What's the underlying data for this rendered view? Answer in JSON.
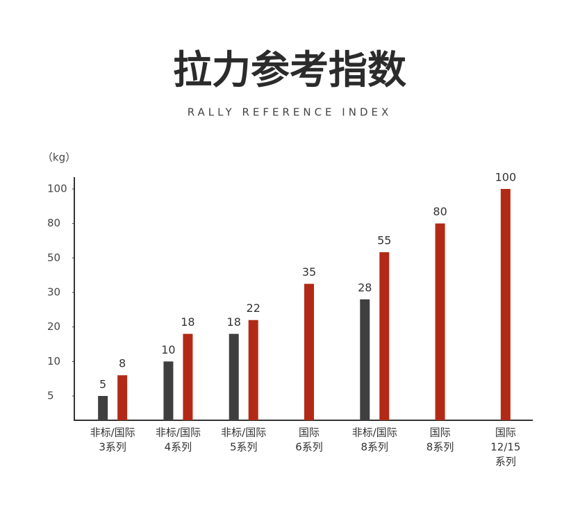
{
  "chart_data": {
    "type": "bar",
    "title": "拉力参考指数",
    "subtitle": "RALLY REFERENCE INDEX",
    "y_label": "（kg）",
    "categories": [
      [
        "非标/国际",
        "3系列"
      ],
      [
        "非标/国际",
        "4系列"
      ],
      [
        "非标/国际",
        "5系列"
      ],
      [
        "国际",
        "6系列"
      ],
      [
        "非标/国际",
        "8系列"
      ],
      [
        "国际",
        "8系列"
      ],
      [
        "国际",
        "12/15",
        "系列"
      ]
    ],
    "series": [
      {
        "color": "#3f3f3f",
        "values": [
          5,
          10,
          18,
          null,
          28,
          null,
          null
        ]
      },
      {
        "color": "#b22a17",
        "values": [
          8,
          18,
          22,
          35,
          55,
          80,
          100
        ]
      }
    ],
    "ylim": [
      0,
      100
    ],
    "yticks": [
      5,
      10,
      20,
      30,
      50,
      80,
      100
    ],
    "grid": false
  }
}
